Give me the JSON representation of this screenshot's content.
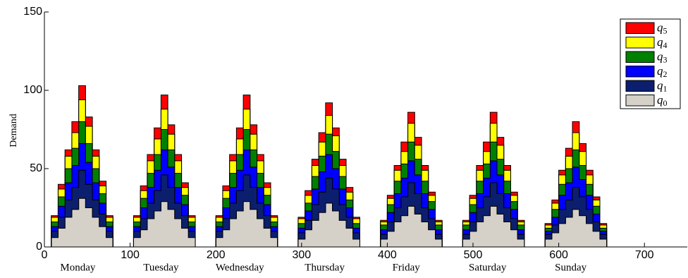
{
  "chart_data": {
    "type": "stacked_area_step",
    "y_label": "Demand",
    "xlim": [
      0,
      750
    ],
    "ylim": [
      0,
      150
    ],
    "xticks": [
      0,
      100,
      200,
      300,
      400,
      500,
      600,
      700
    ],
    "yticks": [
      0,
      50,
      100,
      150
    ],
    "legend": "upper right",
    "day_labels": [
      {
        "label": "Monday",
        "x": 39
      },
      {
        "label": "Tuesday",
        "x": 136
      },
      {
        "label": "Wednesday",
        "x": 228
      },
      {
        "label": "Thursday",
        "x": 327
      },
      {
        "label": "Friday",
        "x": 422
      },
      {
        "label": "Saturday",
        "x": 517
      },
      {
        "label": "Sunday",
        "x": 614
      }
    ],
    "x": [
      0,
      8,
      16,
      24,
      32,
      40,
      48,
      56,
      64,
      72,
      80,
      88,
      96,
      104,
      112,
      120,
      128,
      136,
      144,
      152,
      160,
      168,
      176,
      184,
      192,
      200,
      208,
      216,
      224,
      232,
      240,
      248,
      256,
      264,
      272,
      280,
      288,
      296,
      304,
      312,
      320,
      328,
      336,
      344,
      352,
      360,
      368,
      376,
      384,
      392,
      400,
      408,
      416,
      424,
      432,
      440,
      448,
      456,
      464,
      472,
      480,
      488,
      496,
      504,
      512,
      520,
      528,
      536,
      544,
      552,
      560,
      568,
      576,
      584,
      592,
      600,
      608,
      616,
      624,
      632,
      640,
      648,
      656,
      664,
      672
    ],
    "series": [
      {
        "name": "q0",
        "color": "#d5d1c9",
        "values": [
          0,
          6,
          12,
          19,
          24,
          31,
          25,
          19,
          13,
          6,
          0,
          0,
          0,
          6,
          11,
          18,
          23,
          29,
          24,
          18,
          12,
          6,
          0,
          0,
          0,
          6,
          11,
          18,
          23,
          29,
          24,
          18,
          12,
          6,
          0,
          0,
          0,
          5,
          11,
          17,
          22,
          28,
          23,
          17,
          12,
          5,
          0,
          0,
          0,
          5,
          10,
          16,
          20,
          26,
          21,
          16,
          11,
          5,
          0,
          0,
          0,
          5,
          10,
          16,
          20,
          26,
          21,
          16,
          11,
          5,
          0,
          0,
          0,
          5,
          9,
          15,
          19,
          24,
          20,
          15,
          10,
          5,
          0,
          0,
          0
        ]
      },
      {
        "name": "q1",
        "color": "#0c1f6e",
        "values": [
          0,
          4,
          7,
          11,
          14,
          18,
          15,
          11,
          8,
          4,
          0,
          0,
          0,
          4,
          7,
          10,
          13,
          17,
          14,
          10,
          8,
          4,
          0,
          0,
          0,
          4,
          7,
          10,
          13,
          17,
          14,
          10,
          8,
          4,
          0,
          0,
          0,
          4,
          6,
          10,
          13,
          16,
          14,
          10,
          7,
          4,
          0,
          0,
          0,
          3,
          6,
          9,
          12,
          15,
          13,
          9,
          7,
          3,
          0,
          0,
          0,
          3,
          6,
          9,
          12,
          15,
          13,
          9,
          7,
          3,
          0,
          0,
          0,
          3,
          5,
          9,
          11,
          14,
          12,
          9,
          6,
          3,
          0,
          0,
          0
        ]
      },
      {
        "name": "q2",
        "color": "#0000ff",
        "values": [
          0,
          3,
          7,
          11,
          14,
          17,
          14,
          11,
          7,
          3,
          0,
          0,
          0,
          3,
          7,
          10,
          13,
          16,
          13,
          10,
          7,
          3,
          0,
          0,
          0,
          3,
          7,
          10,
          13,
          16,
          13,
          10,
          7,
          3,
          0,
          0,
          0,
          3,
          6,
          10,
          13,
          15,
          13,
          10,
          6,
          3,
          0,
          0,
          0,
          3,
          6,
          9,
          12,
          14,
          12,
          9,
          6,
          3,
          0,
          0,
          0,
          3,
          6,
          9,
          12,
          14,
          12,
          9,
          6,
          3,
          0,
          0,
          0,
          2,
          5,
          9,
          11,
          13,
          11,
          9,
          5,
          2,
          0,
          0,
          0
        ]
      },
      {
        "name": "q3",
        "color": "#008000",
        "values": [
          0,
          3,
          6,
          9,
          11,
          14,
          12,
          9,
          6,
          3,
          0,
          0,
          0,
          3,
          6,
          9,
          10,
          13,
          11,
          9,
          6,
          3,
          0,
          0,
          0,
          3,
          6,
          9,
          10,
          13,
          11,
          9,
          6,
          3,
          0,
          0,
          0,
          3,
          5,
          8,
          10,
          13,
          11,
          8,
          5,
          3,
          0,
          0,
          0,
          3,
          5,
          8,
          9,
          12,
          10,
          8,
          5,
          3,
          0,
          0,
          0,
          3,
          5,
          8,
          9,
          12,
          10,
          8,
          5,
          3,
          0,
          0,
          0,
          2,
          5,
          7,
          9,
          11,
          9,
          7,
          5,
          2,
          0,
          0,
          0
        ]
      },
      {
        "name": "q4",
        "color": "#ffff00",
        "values": [
          0,
          3,
          5,
          8,
          10,
          14,
          11,
          8,
          5,
          3,
          0,
          0,
          0,
          3,
          5,
          8,
          10,
          13,
          10,
          8,
          5,
          3,
          0,
          0,
          0,
          3,
          5,
          8,
          10,
          13,
          10,
          8,
          5,
          3,
          0,
          0,
          0,
          3,
          5,
          7,
          9,
          12,
          10,
          7,
          5,
          3,
          0,
          0,
          0,
          2,
          4,
          7,
          8,
          12,
          9,
          7,
          4,
          2,
          0,
          0,
          0,
          2,
          4,
          7,
          8,
          12,
          9,
          7,
          4,
          2,
          0,
          0,
          0,
          2,
          4,
          6,
          8,
          11,
          9,
          6,
          4,
          2,
          0,
          0,
          0
        ]
      },
      {
        "name": "q5",
        "color": "#ff0000",
        "values": [
          0,
          1,
          3,
          4,
          7,
          9,
          6,
          4,
          3,
          1,
          0,
          0,
          0,
          1,
          3,
          4,
          7,
          9,
          6,
          4,
          3,
          1,
          0,
          0,
          0,
          1,
          3,
          4,
          7,
          9,
          6,
          4,
          3,
          1,
          0,
          0,
          0,
          1,
          3,
          4,
          6,
          8,
          5,
          4,
          3,
          1,
          0,
          0,
          0,
          1,
          2,
          3,
          6,
          7,
          5,
          3,
          2,
          1,
          0,
          0,
          0,
          1,
          2,
          3,
          6,
          7,
          5,
          3,
          2,
          1,
          0,
          0,
          0,
          1,
          2,
          3,
          5,
          7,
          5,
          3,
          2,
          1,
          0,
          0,
          0
        ]
      }
    ]
  }
}
